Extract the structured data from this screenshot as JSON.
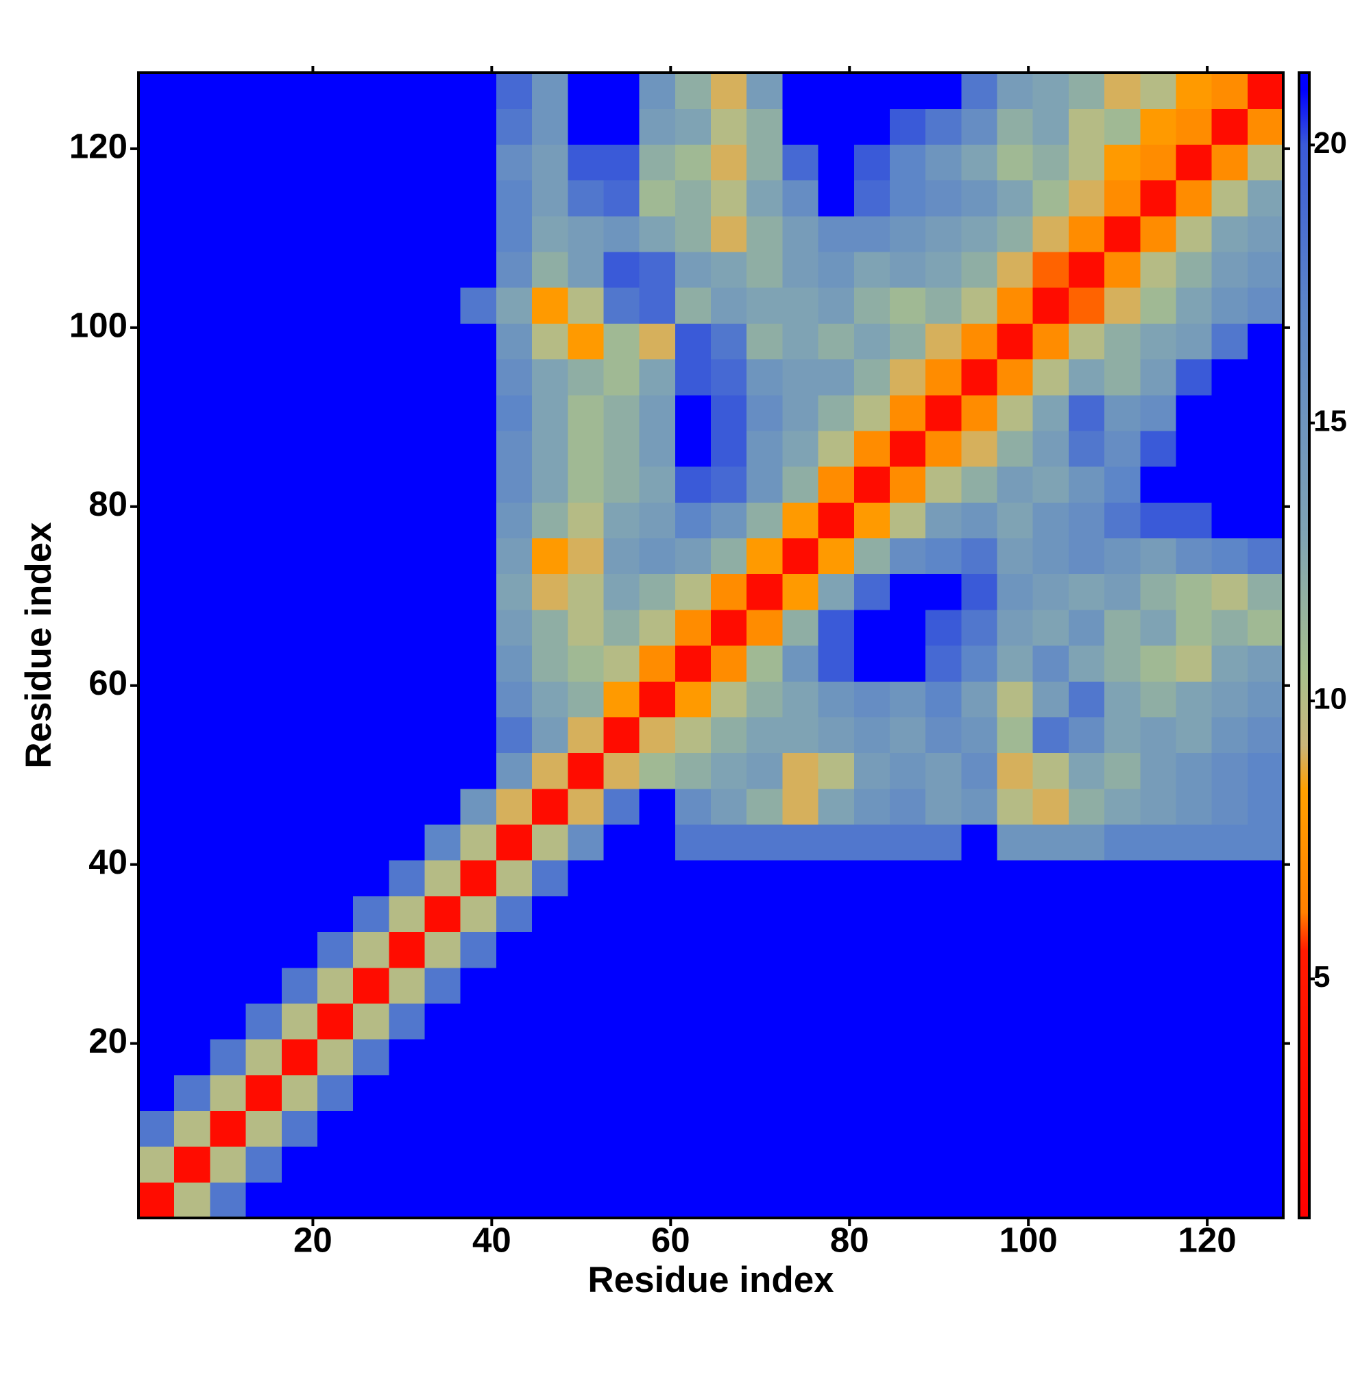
{
  "chart_data": {
    "type": "heatmap",
    "xlabel": "Residue index",
    "ylabel": "Residue index",
    "xlim": [
      0.5,
      128.5
    ],
    "ylim": [
      0.5,
      128.5
    ],
    "xticks": [
      20,
      40,
      60,
      80,
      100,
      120
    ],
    "yticks": [
      20,
      40,
      60,
      80,
      100,
      120
    ],
    "zlim": [
      0.7,
      21.3
    ],
    "zticks": [
      5,
      10,
      15,
      20
    ],
    "colorscale": [
      [
        0.7,
        "#ff0000"
      ],
      [
        5.5,
        "#ff1a00"
      ],
      [
        6.2,
        "#ff8000"
      ],
      [
        8.4,
        "#ffa000"
      ],
      [
        9.2,
        "#c9b57a"
      ],
      [
        10.5,
        "#a8bf8c"
      ],
      [
        13,
        "#7fa3b4"
      ],
      [
        17,
        "#5d86c8"
      ],
      [
        20,
        "#3a5ad8"
      ],
      [
        21,
        "#0000ff"
      ],
      [
        21.3,
        "#0000ff"
      ]
    ],
    "z": [
      [
        3,
        10,
        18,
        21,
        21,
        21,
        21,
        21,
        21,
        21,
        21,
        21,
        21,
        21,
        21,
        21,
        21,
        21,
        21,
        21,
        21,
        21,
        21,
        21,
        21,
        21,
        21,
        21,
        21,
        21,
        21,
        21
      ],
      [
        10,
        3,
        10,
        18,
        21,
        21,
        21,
        21,
        21,
        21,
        21,
        21,
        21,
        21,
        21,
        21,
        21,
        21,
        21,
        21,
        21,
        21,
        21,
        21,
        21,
        21,
        21,
        21,
        21,
        21,
        21,
        21
      ],
      [
        18,
        10,
        3,
        10,
        18,
        21,
        21,
        21,
        21,
        21,
        21,
        21,
        21,
        21,
        21,
        21,
        21,
        21,
        21,
        21,
        21,
        21,
        21,
        21,
        21,
        21,
        21,
        21,
        21,
        21,
        21,
        21
      ],
      [
        21,
        18,
        10,
        3,
        10,
        18,
        21,
        21,
        21,
        21,
        21,
        21,
        21,
        21,
        21,
        21,
        21,
        21,
        21,
        21,
        21,
        21,
        21,
        21,
        21,
        21,
        21,
        21,
        21,
        21,
        21,
        21
      ],
      [
        21,
        21,
        18,
        10,
        3,
        10,
        18,
        21,
        21,
        21,
        21,
        21,
        21,
        21,
        21,
        21,
        21,
        21,
        21,
        21,
        21,
        21,
        21,
        21,
        21,
        21,
        21,
        21,
        21,
        21,
        21,
        21
      ],
      [
        21,
        21,
        21,
        18,
        10,
        3,
        10,
        18,
        21,
        21,
        21,
        21,
        21,
        21,
        21,
        21,
        21,
        21,
        21,
        21,
        21,
        21,
        21,
        21,
        21,
        21,
        21,
        21,
        21,
        21,
        21,
        21
      ],
      [
        21,
        21,
        21,
        21,
        18,
        10,
        3,
        10,
        18,
        21,
        21,
        21,
        21,
        21,
        21,
        21,
        21,
        21,
        21,
        21,
        21,
        21,
        21,
        21,
        21,
        21,
        21,
        21,
        21,
        21,
        21,
        21
      ],
      [
        21,
        21,
        21,
        21,
        21,
        18,
        10,
        3,
        10,
        18,
        21,
        21,
        21,
        21,
        21,
        21,
        21,
        21,
        21,
        21,
        21,
        21,
        21,
        21,
        21,
        21,
        21,
        21,
        21,
        21,
        21,
        21
      ],
      [
        21,
        21,
        21,
        21,
        21,
        21,
        18,
        10,
        3,
        10,
        18,
        21,
        21,
        21,
        21,
        21,
        21,
        21,
        21,
        21,
        21,
        21,
        21,
        21,
        21,
        21,
        21,
        21,
        21,
        21,
        21,
        21
      ],
      [
        21,
        21,
        21,
        21,
        21,
        21,
        21,
        18,
        10,
        3,
        10,
        18,
        21,
        21,
        21,
        21,
        21,
        21,
        21,
        21,
        21,
        21,
        21,
        21,
        21,
        21,
        21,
        21,
        21,
        21,
        21,
        21
      ],
      [
        21,
        21,
        21,
        21,
        21,
        21,
        21,
        21,
        17,
        10,
        3,
        10,
        16,
        21,
        21,
        18,
        18,
        18,
        18,
        18,
        18,
        18,
        18,
        21,
        15,
        15,
        15,
        17,
        17,
        17,
        17,
        17
      ],
      [
        21,
        21,
        21,
        21,
        21,
        21,
        21,
        21,
        21,
        15,
        9,
        3,
        9,
        18,
        21,
        16,
        14,
        12,
        9,
        13,
        15,
        16,
        14,
        15,
        10,
        9,
        12,
        13,
        14,
        15,
        16,
        17
      ],
      [
        21,
        21,
        21,
        21,
        21,
        21,
        21,
        21,
        21,
        21,
        15,
        9,
        3,
        9,
        11,
        12,
        13,
        14,
        9,
        10,
        14,
        15,
        14,
        16,
        9,
        10,
        13,
        12,
        14,
        15,
        16,
        17
      ],
      [
        21,
        21,
        21,
        21,
        21,
        21,
        21,
        21,
        21,
        21,
        18,
        14,
        9,
        3,
        9,
        10,
        12,
        13,
        13,
        14,
        15,
        14,
        16,
        15,
        11,
        18,
        16,
        13,
        14,
        13,
        15,
        16
      ],
      [
        21,
        21,
        21,
        21,
        21,
        21,
        21,
        21,
        21,
        21,
        16,
        13,
        12,
        8,
        3,
        8,
        10,
        12,
        13,
        15,
        16,
        15,
        17,
        14,
        10,
        14,
        18,
        13,
        12,
        13,
        14,
        15
      ],
      [
        21,
        21,
        21,
        21,
        21,
        21,
        21,
        21,
        21,
        21,
        15,
        12,
        11,
        10,
        7,
        3,
        7,
        11,
        15,
        20,
        21,
        21,
        19,
        17,
        13,
        16,
        13,
        12,
        11,
        10,
        13,
        14
      ],
      [
        21,
        21,
        21,
        21,
        21,
        21,
        21,
        21,
        21,
        21,
        14,
        12,
        10,
        12,
        10,
        7,
        3,
        7,
        12,
        20,
        21,
        21,
        20,
        18,
        14,
        13,
        15,
        12,
        13,
        11,
        12,
        11
      ],
      [
        21,
        21,
        21,
        21,
        21,
        21,
        21,
        21,
        21,
        21,
        13,
        9,
        10,
        13,
        12,
        10,
        7,
        3,
        8,
        13,
        19,
        21,
        21,
        20,
        15,
        14,
        13,
        14,
        12,
        11,
        10,
        12
      ],
      [
        21,
        21,
        21,
        21,
        21,
        21,
        21,
        21,
        21,
        21,
        14,
        8,
        9,
        14,
        15,
        14,
        12,
        8,
        3,
        8,
        12,
        16,
        17,
        18,
        14,
        15,
        16,
        15,
        14,
        16,
        17,
        18
      ],
      [
        21,
        21,
        21,
        21,
        21,
        21,
        21,
        21,
        21,
        21,
        15,
        12,
        10,
        13,
        14,
        17,
        15,
        12,
        8,
        3,
        8,
        10,
        14,
        15,
        13,
        15,
        16,
        18,
        20,
        20,
        21,
        21
      ],
      [
        21,
        21,
        21,
        21,
        21,
        21,
        21,
        21,
        21,
        21,
        16,
        13,
        11,
        12,
        13,
        20,
        19,
        15,
        12,
        7,
        3,
        7,
        10,
        12,
        14,
        13,
        15,
        17,
        21,
        21,
        21,
        21
      ],
      [
        21,
        21,
        21,
        21,
        21,
        21,
        21,
        21,
        21,
        21,
        16,
        13,
        11,
        12,
        14,
        21,
        20,
        15,
        13,
        10,
        7,
        3,
        7,
        9,
        12,
        14,
        18,
        16,
        20,
        21,
        21,
        21
      ],
      [
        21,
        21,
        21,
        21,
        21,
        21,
        21,
        21,
        21,
        21,
        17,
        13,
        11,
        12,
        14,
        21,
        20,
        16,
        14,
        12,
        10,
        7,
        3,
        7,
        10,
        13,
        19,
        15,
        16,
        21,
        21,
        21
      ],
      [
        21,
        21,
        21,
        21,
        21,
        21,
        21,
        21,
        21,
        21,
        16,
        13,
        12,
        11,
        13,
        20,
        19,
        15,
        14,
        14,
        12,
        9,
        7,
        3,
        7,
        10,
        13,
        12,
        14,
        20,
        21,
        21
      ],
      [
        21,
        21,
        21,
        21,
        21,
        21,
        21,
        21,
        21,
        21,
        15,
        10,
        8,
        11,
        9,
        20,
        18,
        12,
        13,
        12,
        13,
        12,
        9,
        7,
        3,
        7,
        10,
        12,
        13,
        14,
        18,
        21
      ],
      [
        21,
        21,
        21,
        21,
        21,
        21,
        21,
        21,
        21,
        18,
        13,
        8,
        10,
        18,
        19,
        12,
        14,
        13,
        13,
        14,
        12,
        11,
        12,
        10,
        7,
        3,
        6,
        9,
        11,
        13,
        15,
        16
      ],
      [
        21,
        21,
        21,
        21,
        21,
        21,
        21,
        21,
        21,
        21,
        16,
        12,
        14,
        20,
        19,
        14,
        13,
        12,
        14,
        15,
        13,
        14,
        13,
        12,
        9,
        6,
        3,
        7,
        10,
        12,
        14,
        15
      ],
      [
        21,
        21,
        21,
        21,
        21,
        21,
        21,
        21,
        21,
        21,
        17,
        13,
        14,
        15,
        13,
        12,
        9,
        12,
        14,
        16,
        16,
        15,
        14,
        13,
        12,
        9,
        7,
        3,
        7,
        10,
        13,
        14
      ],
      [
        21,
        21,
        21,
        21,
        21,
        21,
        21,
        21,
        21,
        21,
        17,
        14,
        18,
        19,
        11,
        12,
        10,
        13,
        16,
        21,
        19,
        17,
        16,
        15,
        13,
        11,
        9,
        7,
        3,
        7,
        10,
        13
      ],
      [
        21,
        21,
        21,
        21,
        21,
        21,
        21,
        21,
        21,
        21,
        16,
        14,
        20,
        20,
        12,
        11,
        9,
        12,
        19,
        21,
        20,
        17,
        15,
        13,
        11,
        12,
        10,
        8,
        7,
        3,
        7,
        10
      ],
      [
        21,
        21,
        21,
        21,
        21,
        21,
        21,
        21,
        21,
        21,
        18,
        15,
        21,
        21,
        14,
        13,
        10,
        12,
        21,
        21,
        21,
        20,
        18,
        16,
        12,
        13,
        10,
        11,
        8,
        7,
        3,
        7
      ],
      [
        21,
        21,
        21,
        21,
        21,
        21,
        21,
        21,
        21,
        21,
        19,
        15,
        21,
        21,
        15,
        12,
        9,
        14,
        21,
        21,
        21,
        21,
        21,
        18,
        14,
        13,
        12,
        9,
        10,
        8,
        7,
        3
      ]
    ]
  }
}
